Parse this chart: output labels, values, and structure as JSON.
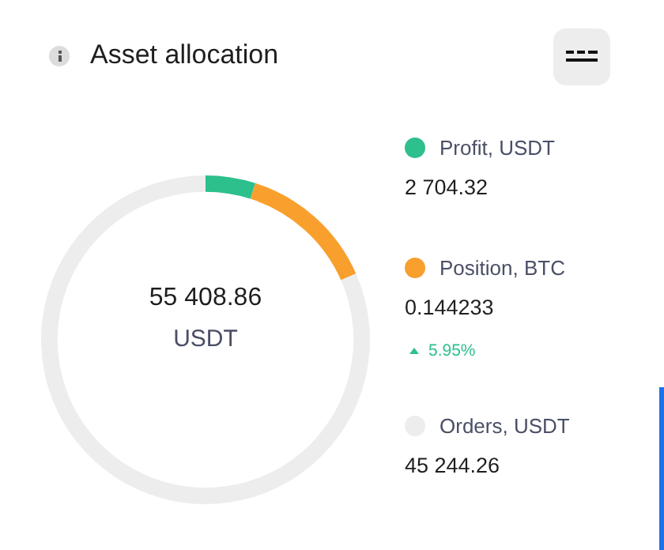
{
  "chart_data": {
    "type": "donut",
    "title": "Asset allocation",
    "categories": [
      "Profit, USDT",
      "Position, BTC",
      "Orders, USDT"
    ],
    "values": [
      4.9,
      13.5,
      81.6
    ],
    "colors": [
      "#2dbf8c",
      "#f89f2e",
      "#ededed"
    ],
    "annotations": [
      "55 408.86",
      "USDT",
      "5.95%",
      "2 704.32",
      "0.144233",
      "45 244.26"
    ],
    "legend": "right"
  }
}
